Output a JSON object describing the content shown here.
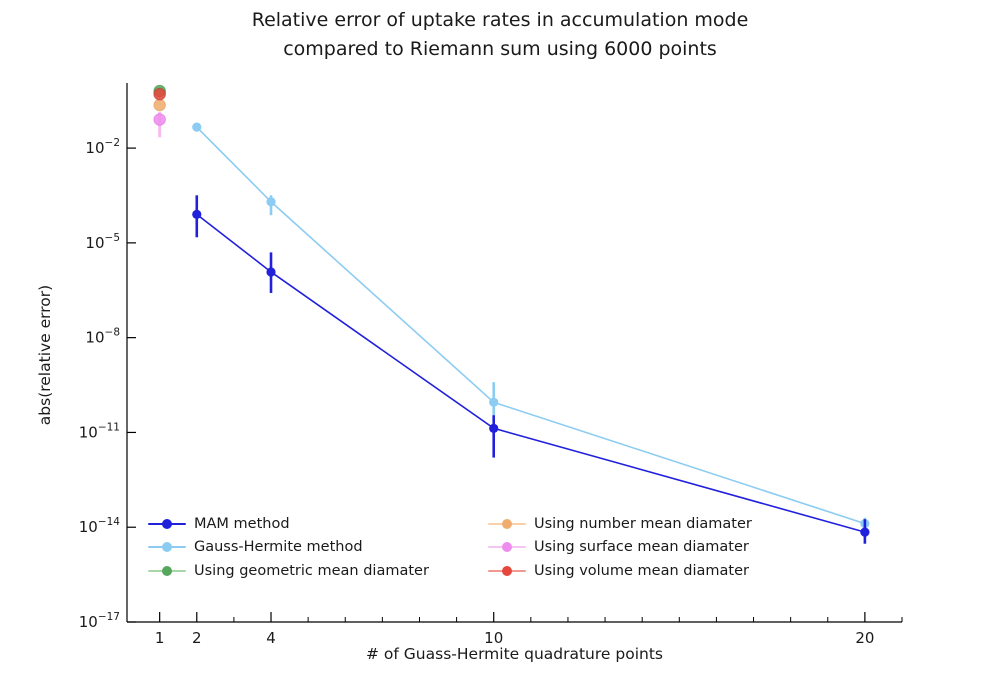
{
  "chart_data": {
    "type": "line",
    "title_line1": "Relative error of uptake rates in accumulation mode",
    "title_line2": "compared to Riemann sum using 6000 points",
    "xlabel": "# of Guass-Hermite quadrature points",
    "ylabel": "abs(relative error)",
    "x_scale": "linear",
    "y_scale": "log",
    "xlim": [
      0.12,
      21.0
    ],
    "ylim_log10": [
      -17,
      0.06
    ],
    "x_major_ticks": [
      1,
      2,
      4,
      10,
      20
    ],
    "x_major_tick_labels": [
      "1",
      "2",
      "4",
      "10",
      "20"
    ],
    "x_minor_ticks": [
      3,
      5,
      6,
      7,
      8,
      9,
      11,
      12,
      13,
      14,
      15,
      16,
      17,
      18,
      19,
      21
    ],
    "y_tick_exponents": [
      -2,
      -5,
      -8,
      -11,
      -14,
      -17
    ],
    "y_tick_labels": [
      "10^-2",
      "10^-5",
      "10^-8",
      "10^-11",
      "10^-14",
      "10^-17"
    ],
    "grid": false,
    "legend_position": "lower-left, 2 columns, no frame",
    "series": [
      {
        "name": "Gauss-Hermite method",
        "color": "#8cccf2",
        "x": [
          2,
          4,
          10,
          20
        ],
        "y": [
          0.046,
          0.0002,
          9e-11,
          1.3e-14
        ],
        "err_lo": [
          null,
          7.5e-05,
          1.9e-11,
          9e-15
        ],
        "err_hi": [
          null,
          0.00032,
          3.9e-10,
          2e-14
        ]
      },
      {
        "name": "MAM method",
        "color": "#2121dc",
        "x": [
          2,
          4,
          10,
          20
        ],
        "y": [
          8e-05,
          1.2e-06,
          1.35e-11,
          7e-15
        ],
        "err_lo": [
          1.5e-05,
          2.6e-07,
          1.6e-12,
          3e-15
        ],
        "err_hi": [
          0.00032,
          5e-06,
          3.5e-11,
          1.8e-14
        ]
      }
    ],
    "points": [
      {
        "name": "Using geometric mean diamater",
        "x": 1,
        "y": 0.64,
        "color": "#56a65c",
        "ring": "#3c8a46",
        "err_lo": null,
        "err_hi": null
      },
      {
        "name": "Using number mean diamater",
        "x": 1,
        "y": 0.23,
        "color": "#f0ac6e",
        "ring": "#e09a55",
        "err_lo": null,
        "err_hi": null
      },
      {
        "name": "Using surface mean diamater",
        "x": 1,
        "y": 0.08,
        "color": "#ee8dee",
        "ring": "#d96ed4",
        "err_lo": 0.022,
        "err_hi": 0.138,
        "err_color": "#f6bcf2"
      },
      {
        "name": "Using volume mean diamater",
        "x": 1,
        "y": 0.51,
        "color": "#e5473d",
        "ring": "#b5342c",
        "err_lo": null,
        "err_hi": null
      }
    ]
  },
  "legend": {
    "items": [
      {
        "label": "MAM method",
        "line_color": "#2121dc",
        "marker_color": "#2121dc"
      },
      {
        "label": "Gauss-Hermite method",
        "line_color": "#8cccf2",
        "marker_color": "#8cccf2"
      },
      {
        "label": "Using geometric mean diamater",
        "line_color": "#a8d6a8",
        "marker_color": "#56a65c"
      },
      {
        "label": "Using number mean diamater",
        "line_color": "#f8d0a8",
        "marker_color": "#f0ac6e"
      },
      {
        "label": "Using surface mean diamater",
        "line_color": "#f8c4f4",
        "marker_color": "#ee8dee"
      },
      {
        "label": "Using volume mean diamater",
        "line_color": "#f2988f",
        "marker_color": "#e5473d"
      }
    ]
  }
}
